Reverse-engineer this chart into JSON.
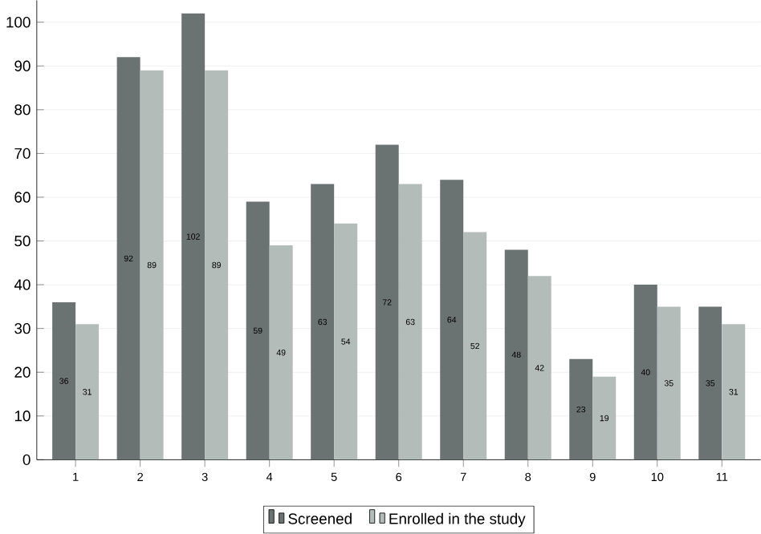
{
  "chart_data": {
    "type": "bar",
    "categories": [
      "1",
      "2",
      "3",
      "4",
      "5",
      "6",
      "7",
      "8",
      "9",
      "10",
      "11"
    ],
    "series": [
      {
        "name": "Screened",
        "color": "#6b7272",
        "values": [
          36,
          92,
          102,
          59,
          63,
          72,
          64,
          48,
          23,
          40,
          35
        ]
      },
      {
        "name": "Enrolled in the study",
        "color": "#b3bcb8",
        "values": [
          31,
          89,
          89,
          49,
          54,
          63,
          52,
          42,
          19,
          35,
          31
        ]
      }
    ],
    "ylim": [
      0,
      105
    ],
    "yticks": [
      0,
      10,
      20,
      30,
      40,
      50,
      60,
      70,
      80,
      90,
      100
    ],
    "grid": "y",
    "legend": "bottom",
    "data_labels": true
  }
}
